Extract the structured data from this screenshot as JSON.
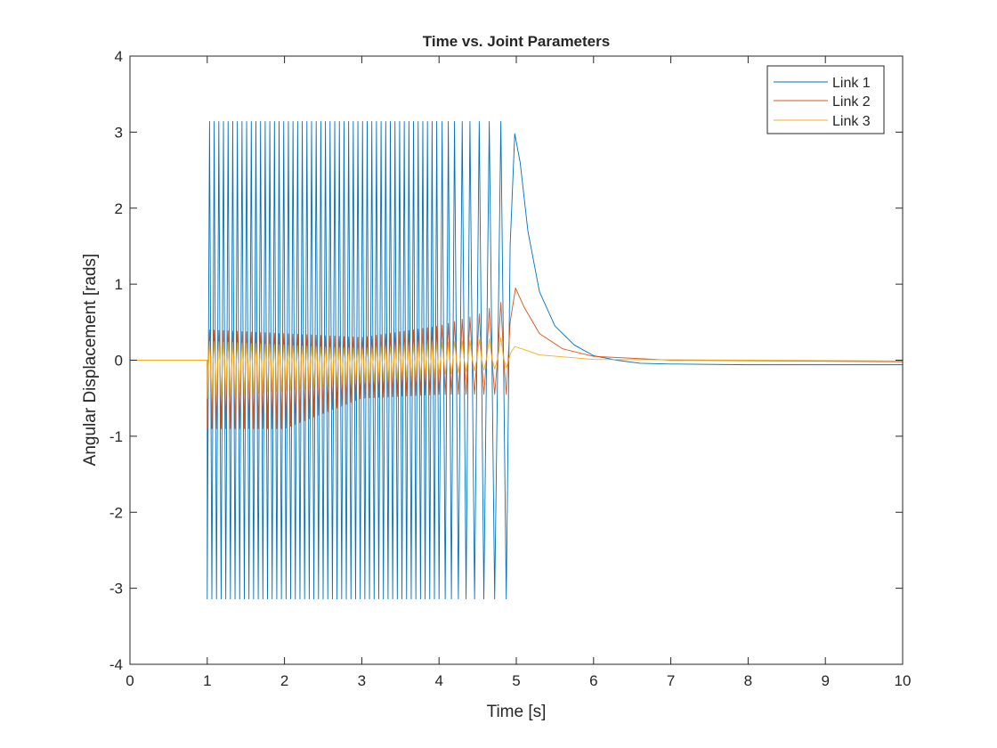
{
  "chart_data": {
    "type": "line",
    "title": "Time vs. Joint Parameters",
    "xlabel": "Time [s]",
    "ylabel": "Angular Displacement [rads]",
    "xlim": [
      0,
      10
    ],
    "ylim": [
      -4,
      4
    ],
    "xticks": [
      "0",
      "1",
      "2",
      "3",
      "4",
      "5",
      "6",
      "7",
      "8",
      "9",
      "10"
    ],
    "yticks": [
      "-4",
      "-3",
      "-2",
      "-1",
      "0",
      "1",
      "2",
      "3",
      "4"
    ],
    "grid": false,
    "legend": {
      "placement": "top-right",
      "entries": [
        "Link 1",
        "Link 2",
        "Link 3"
      ]
    },
    "oscillation_flip_times": [
      1.0,
      1.03,
      1.06,
      1.09,
      1.12,
      1.15,
      1.18,
      1.21,
      1.24,
      1.27,
      1.3,
      1.33,
      1.36,
      1.39,
      1.42,
      1.45,
      1.48,
      1.51,
      1.54,
      1.57,
      1.6,
      1.63,
      1.66,
      1.69,
      1.72,
      1.75,
      1.78,
      1.81,
      1.84,
      1.87,
      1.9,
      1.93,
      1.96,
      1.99,
      2.02,
      2.05,
      2.08,
      2.11,
      2.14,
      2.17,
      2.2,
      2.23,
      2.26,
      2.29,
      2.32,
      2.35,
      2.38,
      2.41,
      2.44,
      2.47,
      2.5,
      2.53,
      2.56,
      2.59,
      2.62,
      2.65,
      2.68,
      2.71,
      2.74,
      2.77,
      2.8,
      2.83,
      2.86,
      2.89,
      2.92,
      2.95,
      2.98,
      3.01,
      3.04,
      3.07,
      3.1,
      3.13,
      3.16,
      3.19,
      3.22,
      3.25,
      3.28,
      3.31,
      3.34,
      3.37,
      3.4,
      3.43,
      3.46,
      3.49,
      3.52,
      3.55,
      3.58,
      3.61,
      3.64,
      3.67,
      3.7,
      3.73,
      3.76,
      3.79,
      3.82,
      3.85,
      3.88,
      3.91,
      3.94,
      3.97,
      4.0,
      4.04,
      4.08,
      4.12,
      4.16,
      4.2,
      4.25,
      4.3,
      4.35,
      4.4,
      4.46,
      4.52,
      4.58,
      4.65,
      4.72,
      4.8,
      4.87
    ],
    "series": [
      {
        "name": "Link 1",
        "color": "#0072BD",
        "initial": [
          [
            0,
            0
          ],
          [
            1,
            0
          ]
        ],
        "osc_high": [
          [
            1,
            3.14
          ],
          [
            4.87,
            3.14
          ]
        ],
        "osc_low": [
          [
            1,
            -3.14
          ],
          [
            4.87,
            -3.14
          ]
        ],
        "decay": [
          [
            4.87,
            -3.14
          ],
          [
            4.92,
            1.5
          ],
          [
            4.98,
            2.98
          ],
          [
            5.05,
            2.6
          ],
          [
            5.15,
            1.7
          ],
          [
            5.3,
            0.9
          ],
          [
            5.5,
            0.45
          ],
          [
            5.75,
            0.2
          ],
          [
            6.0,
            0.06
          ],
          [
            6.3,
            0
          ],
          [
            6.6,
            -0.04
          ],
          [
            7,
            -0.05
          ],
          [
            8,
            -0.06
          ],
          [
            10,
            -0.06
          ]
        ]
      },
      {
        "name": "Link 2",
        "color": "#D95319",
        "initial": [
          [
            0,
            0
          ],
          [
            1,
            0
          ]
        ],
        "osc_high": [
          [
            1,
            0.4
          ],
          [
            2,
            0.35
          ],
          [
            3,
            0.3
          ],
          [
            4,
            0.45
          ],
          [
            4.5,
            0.6
          ],
          [
            4.87,
            0.8
          ]
        ],
        "osc_low": [
          [
            1,
            -0.9
          ],
          [
            2,
            -0.9
          ],
          [
            3,
            -0.5
          ],
          [
            4,
            -0.45
          ],
          [
            4.87,
            -0.45
          ]
        ],
        "decay": [
          [
            4.87,
            -0.45
          ],
          [
            4.92,
            0.5
          ],
          [
            4.99,
            0.95
          ],
          [
            5.1,
            0.7
          ],
          [
            5.3,
            0.35
          ],
          [
            5.6,
            0.15
          ],
          [
            6,
            0.05
          ],
          [
            7,
            0
          ],
          [
            10,
            -0.02
          ]
        ]
      },
      {
        "name": "Link 3",
        "color": "#EDB120",
        "initial": [
          [
            0,
            0
          ],
          [
            1,
            0
          ]
        ],
        "osc_high": [
          [
            1,
            0.25
          ],
          [
            3,
            0.15
          ],
          [
            4.87,
            0.3
          ]
        ],
        "osc_low": [
          [
            1,
            -0.5
          ],
          [
            3,
            -0.3
          ],
          [
            4.87,
            -0.1
          ]
        ],
        "decay": [
          [
            4.87,
            -0.1
          ],
          [
            4.93,
            0.1
          ],
          [
            4.98,
            0.18
          ],
          [
            5.1,
            0.14
          ],
          [
            5.3,
            0.07
          ],
          [
            6,
            0.01
          ],
          [
            10,
            -0.01
          ]
        ]
      }
    ]
  }
}
